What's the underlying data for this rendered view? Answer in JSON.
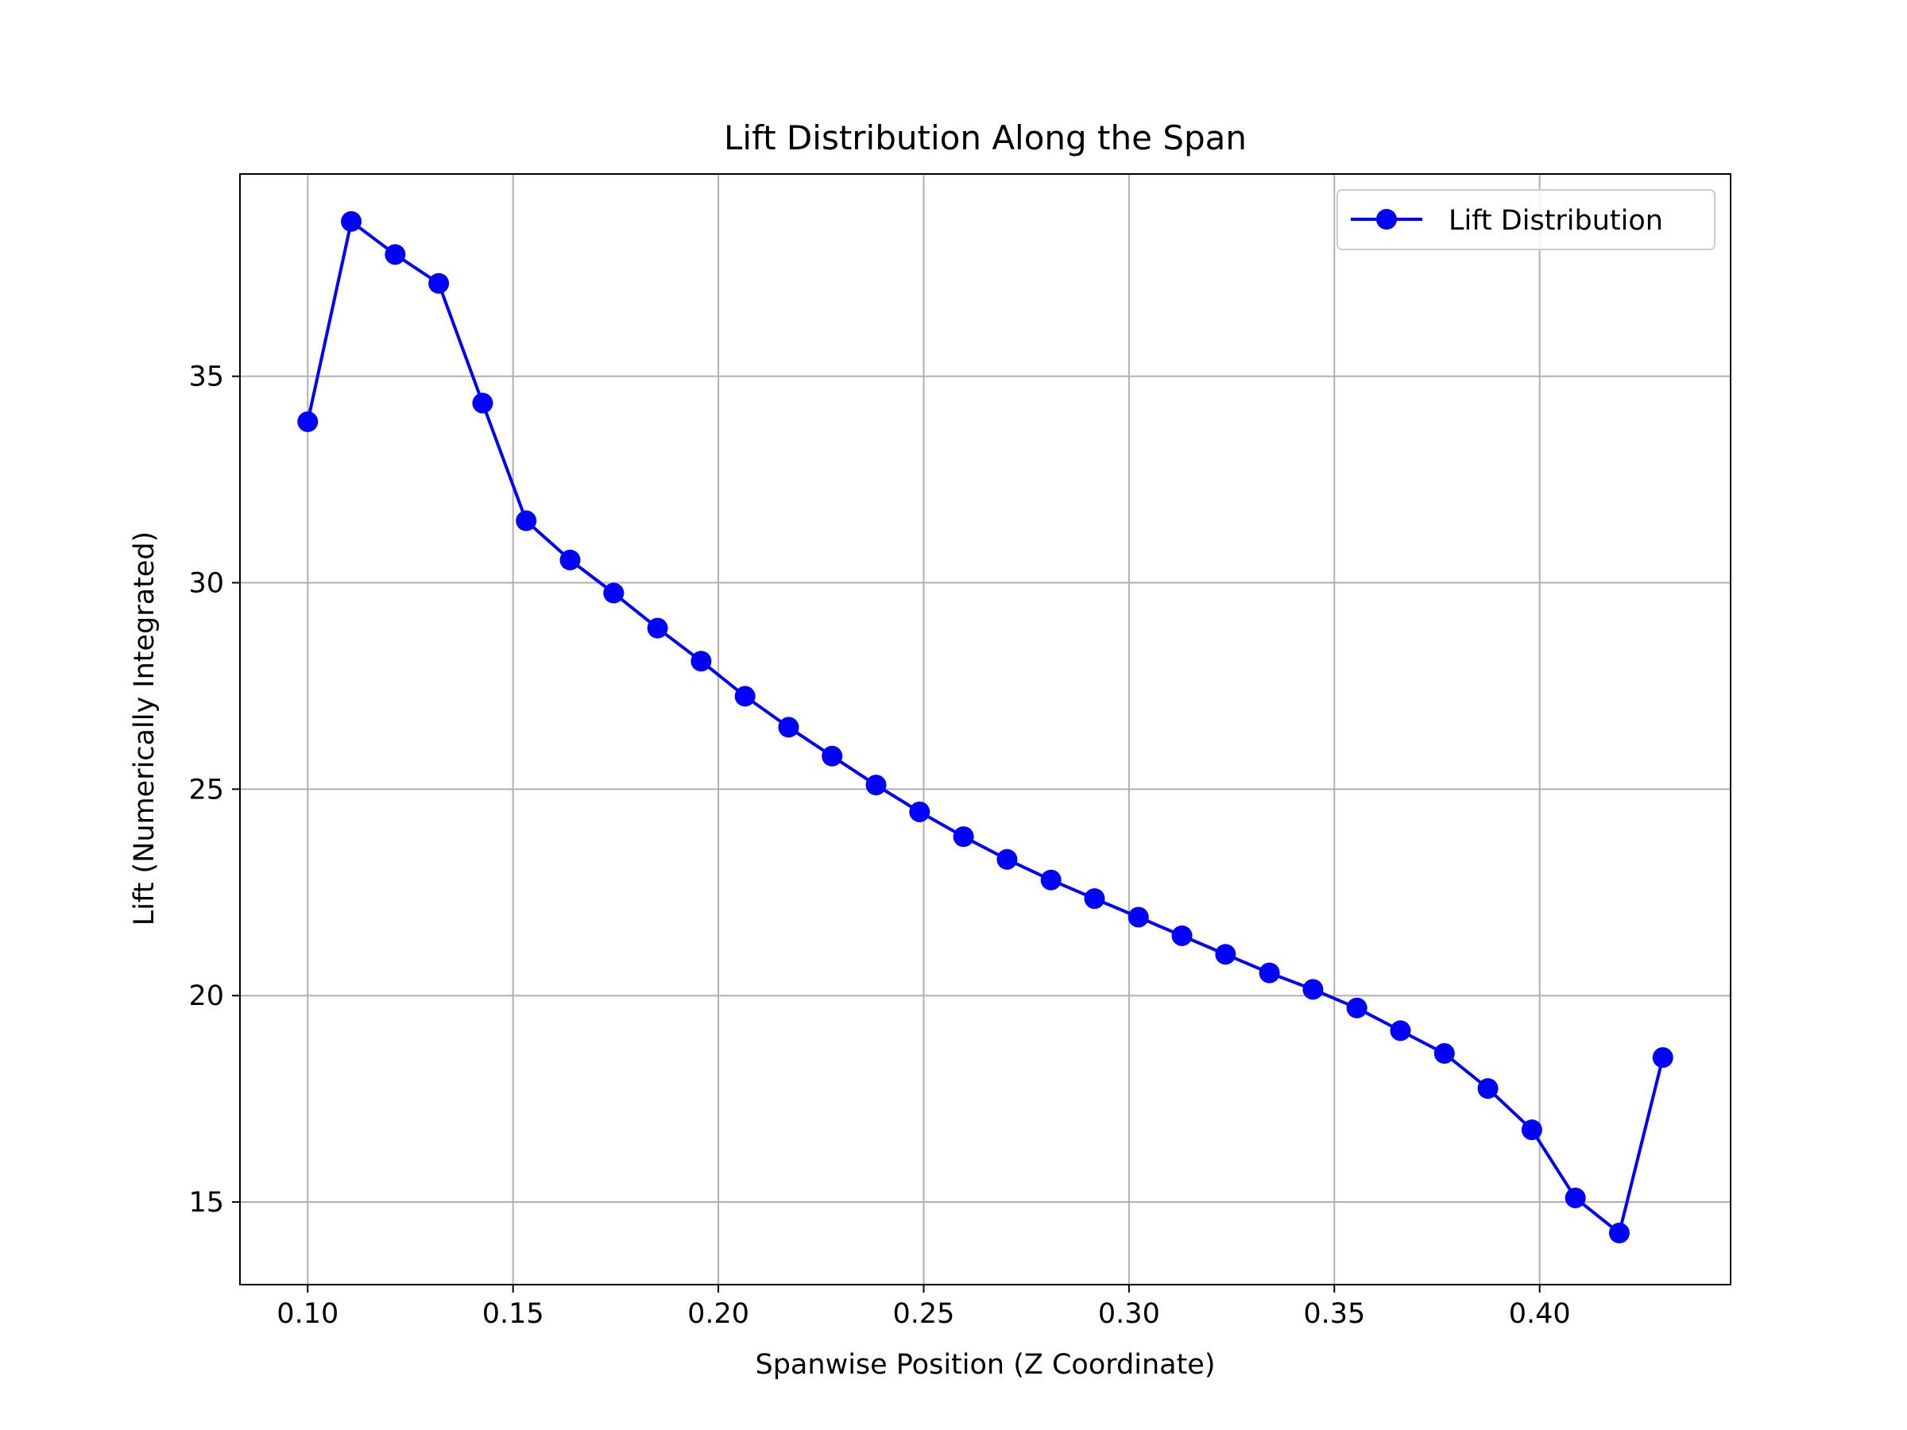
{
  "chart_data": {
    "type": "line",
    "title": "Lift Distribution Along the Span",
    "xlabel": "Spanwise Position (Z Coordinate)",
    "ylabel": "Lift (Numerically Integrated)",
    "xlim": [
      0.0835,
      0.4465
    ],
    "ylim": [
      13.0,
      39.9
    ],
    "x_ticks": [
      0.1,
      0.15,
      0.2,
      0.25,
      0.3,
      0.35,
      0.4
    ],
    "x_tick_labels": [
      "0.10",
      "0.15",
      "0.20",
      "0.25",
      "0.30",
      "0.35",
      "0.40"
    ],
    "y_ticks": [
      15,
      20,
      25,
      30,
      35
    ],
    "y_tick_labels": [
      "15",
      "20",
      "25",
      "30",
      "35"
    ],
    "grid": true,
    "legend_position": "top-right",
    "series": [
      {
        "name": "Lift Distribution",
        "color": "#0000ff",
        "marker": "circle",
        "x": [
          0.1,
          0.1106,
          0.1213,
          0.1319,
          0.1426,
          0.1532,
          0.1639,
          0.1745,
          0.1852,
          0.1958,
          0.2065,
          0.2171,
          0.2277,
          0.2384,
          0.249,
          0.2597,
          0.2703,
          0.281,
          0.2916,
          0.3023,
          0.3129,
          0.3235,
          0.3342,
          0.3448,
          0.3555,
          0.3661,
          0.3768,
          0.3874,
          0.3981,
          0.4087,
          0.4194,
          0.43
        ],
        "values": [
          33.9,
          38.75,
          37.95,
          37.25,
          34.35,
          31.5,
          30.55,
          29.75,
          28.9,
          28.1,
          27.25,
          26.5,
          25.8,
          25.1,
          24.45,
          23.85,
          23.3,
          22.8,
          22.35,
          21.9,
          21.45,
          21.0,
          20.55,
          20.15,
          19.7,
          19.15,
          18.6,
          17.75,
          16.75,
          15.1,
          14.25,
          18.5
        ]
      }
    ]
  }
}
